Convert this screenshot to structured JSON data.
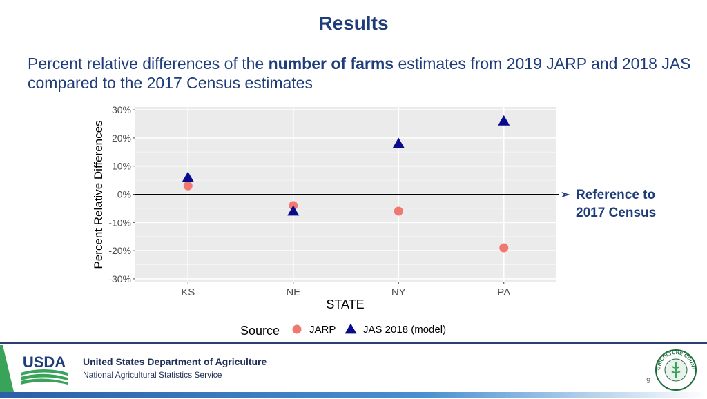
{
  "slide": {
    "title": "Results",
    "subtitle_pre": "Percent relative differences of the ",
    "subtitle_bold": "number of farms",
    "subtitle_post": " estimates from 2019 JARP and 2018 JAS compared to the 2017 Census estimates",
    "reference_note_line1": "Reference to",
    "reference_note_line2": "2017 Census",
    "page_number": "9"
  },
  "footer": {
    "logo_text": "USDA",
    "org_name": "United States Department of Agriculture",
    "org_sub": "National Agricultural Statistics Service",
    "seal_text": "AGRICULTURE COUNTS"
  },
  "chart_data": {
    "type": "scatter",
    "xlabel": "STATE",
    "ylabel": "Percent Relative Differences",
    "categories": [
      "KS",
      "NE",
      "NY",
      "PA"
    ],
    "y_ticks": [
      "30%",
      "20%",
      "10%",
      "0%",
      "-10%",
      "-20%",
      "-30%"
    ],
    "y_tick_values": [
      30,
      20,
      10,
      0,
      -10,
      -20,
      -30
    ],
    "ylim": [
      -31,
      31
    ],
    "grid": true,
    "reference_line": 0,
    "legend_title": "Source",
    "legend_position": "bottom",
    "series": [
      {
        "name": "JARP",
        "marker": "circle",
        "color": "#f07870",
        "values": [
          3,
          -4,
          -6,
          -19
        ]
      },
      {
        "name": "JAS 2018 (model)",
        "marker": "triangle",
        "color": "#0a0a8c",
        "values": [
          6,
          -6,
          18,
          26
        ]
      }
    ]
  }
}
